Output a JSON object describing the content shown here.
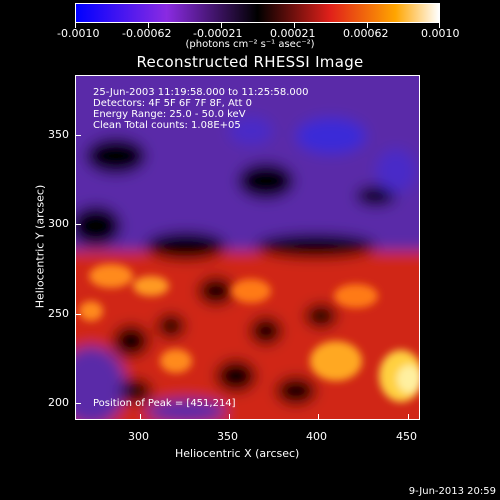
{
  "colorbar": {
    "tick_labels": [
      "-0.0010",
      "-0.00062",
      "-0.00021",
      "0.00021",
      "0.00062",
      "0.0010"
    ],
    "units_label": "(photons cm⁻² s⁻¹ asec⁻²)",
    "range": [
      -0.001,
      0.001
    ]
  },
  "title": "Reconstructed RHESSI Image",
  "info": {
    "time_range": "25-Jun-2003 11:19:58.000 to 11:25:58.000",
    "detectors": "Detectors: 4F 5F 6F 7F 8F, Att 0",
    "energy": "Energy Range: 25.0 - 50.0 keV",
    "method_counts": "Clean     Total counts: 1.08E+05",
    "peak": "Position of Peak = [451,214]"
  },
  "axes": {
    "xlabel": "Heliocentric X (arcsec)",
    "ylabel": "Heliocentric Y (arcsec)",
    "x_ticks": [
      "300",
      "350",
      "400",
      "450"
    ],
    "y_ticks": [
      "200",
      "250",
      "300",
      "350"
    ],
    "xlim": [
      265,
      455
    ],
    "ylim": [
      195,
      385
    ]
  },
  "footer_date": "9-Jun-2013 20:59",
  "chart_data": {
    "type": "heatmap",
    "title": "Reconstructed RHESSI Image",
    "xlabel": "Heliocentric X (arcsec)",
    "ylabel": "Heliocentric Y (arcsec)",
    "xlim": [
      265,
      455
    ],
    "ylim": [
      195,
      385
    ],
    "colorbar_range": [
      -0.001,
      0.001
    ],
    "colorbar_ticks": [
      -0.001,
      -0.00062,
      -0.00021,
      0.00021,
      0.00062,
      0.001
    ],
    "peak_position": [
      451,
      214
    ],
    "colors": {
      "negative": "#6a2fc0",
      "deep_negative": "#2b2bd0",
      "zero": "#000000",
      "positive": "#e8301a",
      "high_positive": "#ffd040"
    }
  }
}
